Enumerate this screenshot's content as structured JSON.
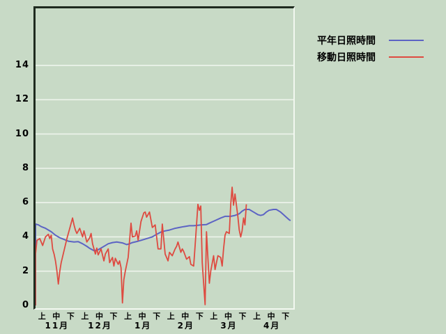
{
  "chart_data": {
    "type": "line",
    "title": "",
    "xlabel": "",
    "ylabel": "",
    "x_unit": "days from Nov 1; each month divided into 上/中/下 (early/mid/late 10-day periods)",
    "x_total_days": 181,
    "ylim": [
      0,
      17.4
    ],
    "grid": "horizontal white lines at even hour values",
    "y_ticks": [
      "0",
      "2",
      "4",
      "6",
      "8",
      "10",
      "12",
      "14"
    ],
    "x_period_labels": [
      "上",
      "中",
      "下"
    ],
    "x_month_labels": [
      "11月",
      "12月",
      "1月",
      "2月",
      "3月",
      "4月"
    ],
    "legend_position": "right-top, outside plot",
    "series": [
      {
        "name": "平年日照時間",
        "color": "#5c63c4",
        "points": [
          [
            0,
            0
          ],
          [
            0,
            4.75
          ],
          [
            2,
            4.7
          ],
          [
            4,
            4.6
          ],
          [
            7,
            4.5
          ],
          [
            11,
            4.3
          ],
          [
            14,
            4.1
          ],
          [
            17,
            3.95
          ],
          [
            20,
            3.85
          ],
          [
            23,
            3.75
          ],
          [
            27,
            3.7
          ],
          [
            30,
            3.72
          ],
          [
            33,
            3.6
          ],
          [
            36,
            3.45
          ],
          [
            38,
            3.33
          ],
          [
            41,
            3.2
          ],
          [
            44,
            3.25
          ],
          [
            46,
            3.35
          ],
          [
            49,
            3.5
          ],
          [
            51,
            3.6
          ],
          [
            54,
            3.67
          ],
          [
            57,
            3.7
          ],
          [
            61,
            3.65
          ],
          [
            64,
            3.55
          ],
          [
            66,
            3.6
          ],
          [
            68,
            3.67
          ],
          [
            72,
            3.75
          ],
          [
            74,
            3.8
          ],
          [
            78,
            3.9
          ],
          [
            82,
            4.0
          ],
          [
            85,
            4.15
          ],
          [
            88,
            4.28
          ],
          [
            91,
            4.35
          ],
          [
            94,
            4.4
          ],
          [
            98,
            4.5
          ],
          [
            101,
            4.55
          ],
          [
            104,
            4.6
          ],
          [
            108,
            4.65
          ],
          [
            111,
            4.65
          ],
          [
            114,
            4.68
          ],
          [
            116,
            4.7
          ],
          [
            120,
            4.72
          ],
          [
            122,
            4.8
          ],
          [
            126,
            4.95
          ],
          [
            130,
            5.1
          ],
          [
            133,
            5.2
          ],
          [
            137,
            5.2
          ],
          [
            140,
            5.25
          ],
          [
            143,
            5.35
          ],
          [
            145,
            5.5
          ],
          [
            147,
            5.6
          ],
          [
            150,
            5.6
          ],
          [
            153,
            5.45
          ],
          [
            156,
            5.3
          ],
          [
            158,
            5.25
          ],
          [
            160,
            5.3
          ],
          [
            162,
            5.45
          ],
          [
            164,
            5.55
          ],
          [
            167,
            5.6
          ],
          [
            169,
            5.6
          ],
          [
            172,
            5.45
          ],
          [
            174,
            5.3
          ],
          [
            176,
            5.15
          ],
          [
            178,
            5.0
          ],
          [
            179,
            4.95
          ]
        ]
      },
      {
        "name": "移動日照時間",
        "color": "#de4a40",
        "points": [
          [
            0,
            0
          ],
          [
            0,
            3.0
          ],
          [
            1,
            3.8
          ],
          [
            3,
            3.9
          ],
          [
            5,
            3.5
          ],
          [
            7,
            4.0
          ],
          [
            9,
            4.15
          ],
          [
            10,
            3.9
          ],
          [
            11,
            4.1
          ],
          [
            12,
            3.3
          ],
          [
            13,
            3.0
          ],
          [
            14,
            2.6
          ],
          [
            15,
            2.0
          ],
          [
            16,
            1.25
          ],
          [
            17,
            2.0
          ],
          [
            18,
            2.5
          ],
          [
            20,
            3.2
          ],
          [
            22,
            3.9
          ],
          [
            24,
            4.5
          ],
          [
            26,
            5.1
          ],
          [
            27,
            4.7
          ],
          [
            28,
            4.4
          ],
          [
            29,
            4.2
          ],
          [
            31,
            4.5
          ],
          [
            33,
            4.0
          ],
          [
            34,
            4.35
          ],
          [
            36,
            3.7
          ],
          [
            38,
            3.95
          ],
          [
            39,
            4.2
          ],
          [
            40,
            3.6
          ],
          [
            42,
            3.0
          ],
          [
            43,
            3.35
          ],
          [
            44,
            2.95
          ],
          [
            46,
            3.3
          ],
          [
            48,
            2.6
          ],
          [
            49,
            3.0
          ],
          [
            51,
            3.3
          ],
          [
            52,
            2.5
          ],
          [
            54,
            2.8
          ],
          [
            55,
            2.3
          ],
          [
            56,
            2.75
          ],
          [
            58,
            2.4
          ],
          [
            59,
            2.6
          ],
          [
            60,
            2.2
          ],
          [
            61,
            0.15
          ],
          [
            62,
            1.5
          ],
          [
            63,
            2.0
          ],
          [
            65,
            2.8
          ],
          [
            67,
            4.8
          ],
          [
            68,
            4.0
          ],
          [
            70,
            4.05
          ],
          [
            71,
            4.35
          ],
          [
            72,
            3.8
          ],
          [
            74,
            4.9
          ],
          [
            76,
            5.4
          ],
          [
            77,
            5.45
          ],
          [
            78,
            5.15
          ],
          [
            80,
            5.45
          ],
          [
            82,
            4.55
          ],
          [
            84,
            4.7
          ],
          [
            86,
            3.3
          ],
          [
            88,
            3.3
          ],
          [
            89,
            4.75
          ],
          [
            91,
            3.0
          ],
          [
            93,
            2.6
          ],
          [
            94,
            3.1
          ],
          [
            96,
            2.9
          ],
          [
            98,
            3.3
          ],
          [
            99,
            3.45
          ],
          [
            100,
            3.7
          ],
          [
            102,
            3.1
          ],
          [
            103,
            3.3
          ],
          [
            104,
            3.15
          ],
          [
            106,
            2.7
          ],
          [
            108,
            2.85
          ],
          [
            109,
            2.4
          ],
          [
            111,
            2.3
          ],
          [
            112,
            3.5
          ],
          [
            114,
            5.9
          ],
          [
            115,
            5.55
          ],
          [
            116,
            5.8
          ],
          [
            117,
            2.5
          ],
          [
            119,
            0.05
          ],
          [
            120,
            4.3
          ],
          [
            121,
            2.8
          ],
          [
            122,
            1.3
          ],
          [
            123,
            2.0
          ],
          [
            125,
            2.9
          ],
          [
            126,
            2.1
          ],
          [
            128,
            2.9
          ],
          [
            130,
            2.8
          ],
          [
            131,
            2.3
          ],
          [
            132,
            3.3
          ],
          [
            133,
            4.1
          ],
          [
            134,
            4.3
          ],
          [
            136,
            4.2
          ],
          [
            137,
            5.9
          ],
          [
            138,
            6.9
          ],
          [
            139,
            5.85
          ],
          [
            140,
            6.5
          ],
          [
            142,
            5.2
          ],
          [
            143,
            4.4
          ],
          [
            144,
            4.0
          ],
          [
            145,
            4.35
          ],
          [
            146,
            5.1
          ],
          [
            147,
            4.7
          ],
          [
            148,
            5.9
          ]
        ]
      }
    ]
  },
  "legend": [
    {
      "label": "平年日照時間",
      "color": "#5c63c4"
    },
    {
      "label": "移動日照時間",
      "color": "#de4a40"
    }
  ],
  "colors": {
    "background": "#c8dac6",
    "gridline": "#eef4ec",
    "border_dark": "#1f2b1f",
    "border_light": "#f2f8f0",
    "series_normal": "#5c63c4",
    "series_moving": "#de4a40",
    "text": "#000000"
  }
}
